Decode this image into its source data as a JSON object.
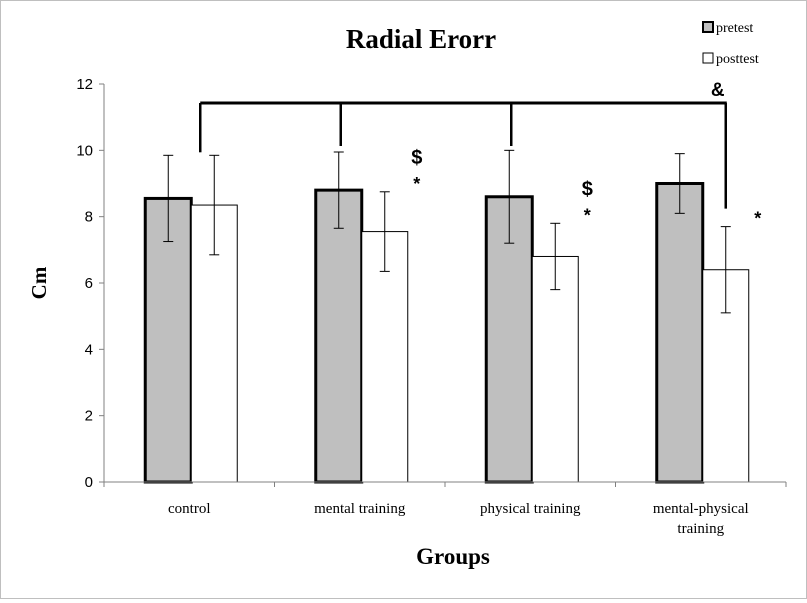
{
  "chart_data": {
    "type": "bar",
    "title": "Radial Erorr",
    "xlabel": "Groups",
    "ylabel": "Cm",
    "ylim": [
      0,
      12
    ],
    "yticks": [
      "0",
      "2",
      "4",
      "6",
      "8",
      "10",
      "12"
    ],
    "categories": [
      [
        "control"
      ],
      [
        "mental training"
      ],
      [
        "physical training"
      ],
      [
        "mental-physical",
        "training"
      ]
    ],
    "series": [
      {
        "name": "pretest",
        "color": "#bfbfbf",
        "values": [
          8.55,
          8.8,
          8.6,
          9.0
        ],
        "error": [
          1.3,
          1.15,
          1.4,
          0.9
        ]
      },
      {
        "name": "posttest",
        "color": "#ffffff",
        "values": [
          8.35,
          7.55,
          6.8,
          6.4
        ],
        "error": [
          1.5,
          1.2,
          1.0,
          1.3
        ]
      }
    ],
    "legend_position": "top-right",
    "annotations": {
      "star": "*",
      "dollar": "$",
      "amp": "&",
      "star_on_posttest": [
        false,
        true,
        true,
        true
      ],
      "dollar_on_posttest": [
        false,
        true,
        true,
        false
      ],
      "amp_on": "mental-physical training"
    },
    "grid": false
  }
}
